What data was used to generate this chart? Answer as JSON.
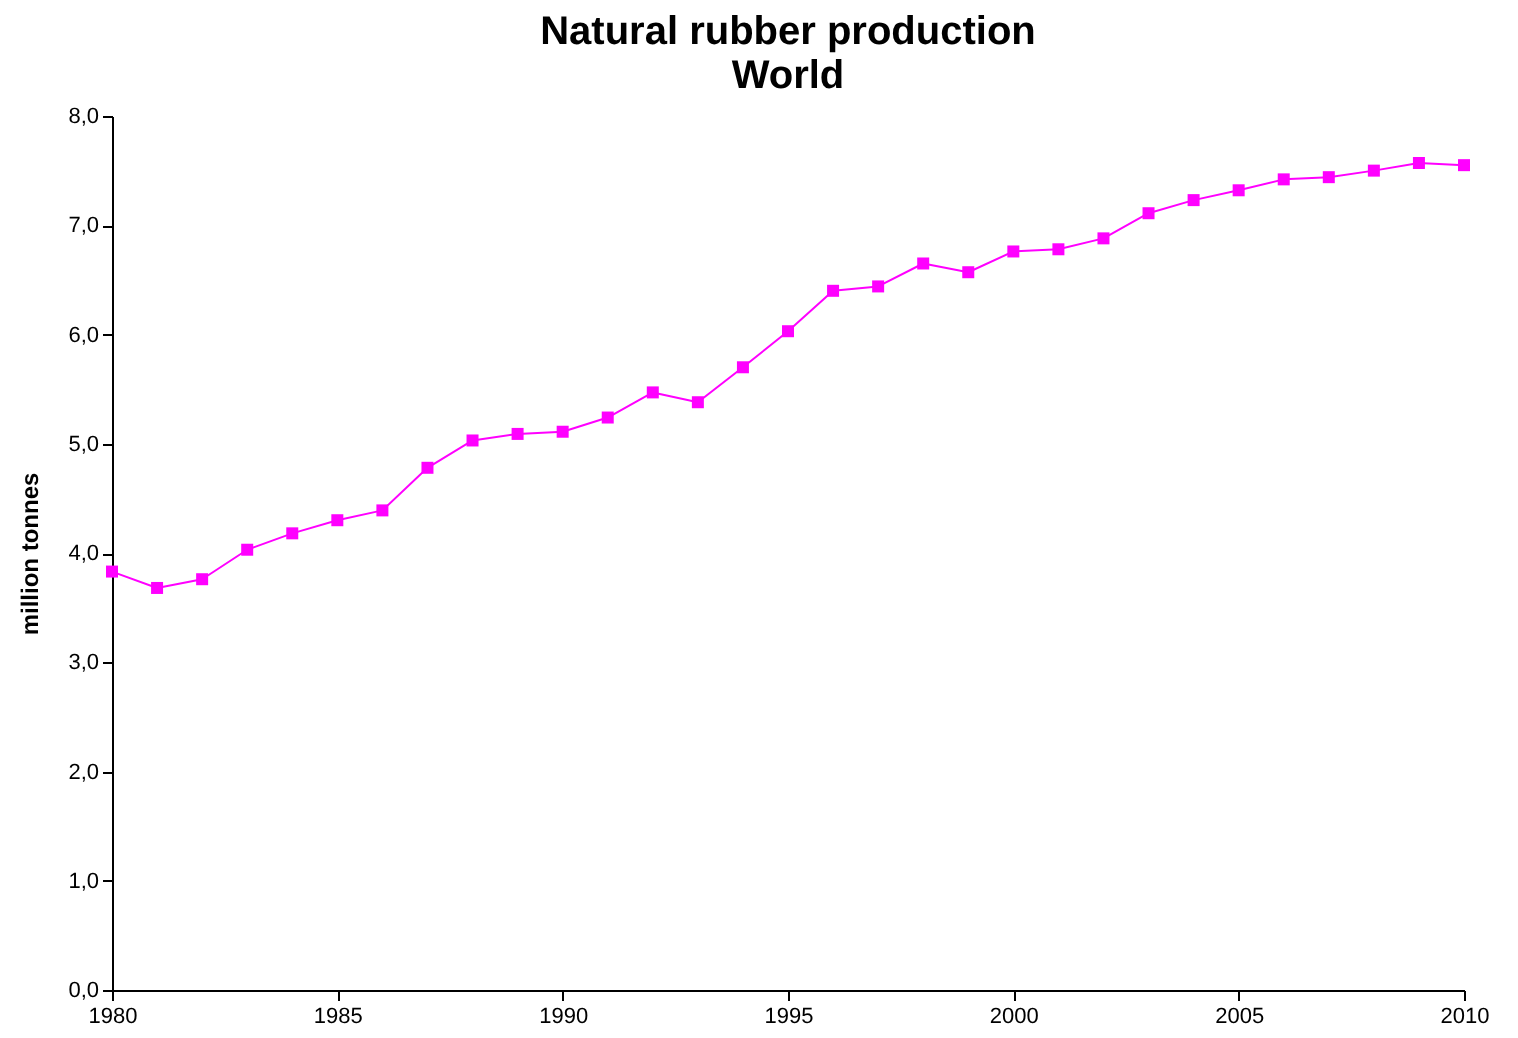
{
  "chart_data": {
    "type": "line",
    "title": [
      "Natural rubber production",
      "World"
    ],
    "ylabel": "million tonnes",
    "x": [
      1980,
      1981,
      1982,
      1983,
      1984,
      1985,
      1986,
      1987,
      1988,
      1989,
      1990,
      1991,
      1992,
      1993,
      1994,
      1995,
      1996,
      1997,
      1998,
      1999,
      2000,
      2001,
      2002,
      2003,
      2004,
      2005,
      2006,
      2007,
      2008,
      2009,
      2010
    ],
    "series": [
      {
        "color": "#ff00ff",
        "values": [
          3.83,
          3.68,
          3.76,
          4.03,
          4.18,
          4.3,
          4.39,
          4.78,
          5.03,
          5.09,
          5.11,
          5.24,
          5.47,
          5.38,
          5.7,
          6.03,
          6.4,
          6.44,
          6.65,
          6.57,
          6.76,
          6.78,
          6.88,
          7.11,
          7.23,
          7.32,
          7.42,
          7.44,
          7.5,
          7.57,
          7.55
        ]
      }
    ],
    "xlim": [
      1980,
      2010
    ],
    "xticks": [
      1980,
      1985,
      1990,
      1995,
      2000,
      2005,
      2010
    ],
    "ylim": [
      0,
      8
    ],
    "yticks": [
      {
        "value": 0,
        "label": "0,0"
      },
      {
        "value": 1,
        "label": "1,0"
      },
      {
        "value": 2,
        "label": "2,0"
      },
      {
        "value": 3,
        "label": "3,0"
      },
      {
        "value": 4,
        "label": "4,0"
      },
      {
        "value": 5,
        "label": "5,0"
      },
      {
        "value": 6,
        "label": "6,0"
      },
      {
        "value": 7,
        "label": "7,0"
      },
      {
        "value": 8,
        "label": "8,0"
      }
    ],
    "marker": "square",
    "line_style": "solid",
    "grid": false
  }
}
